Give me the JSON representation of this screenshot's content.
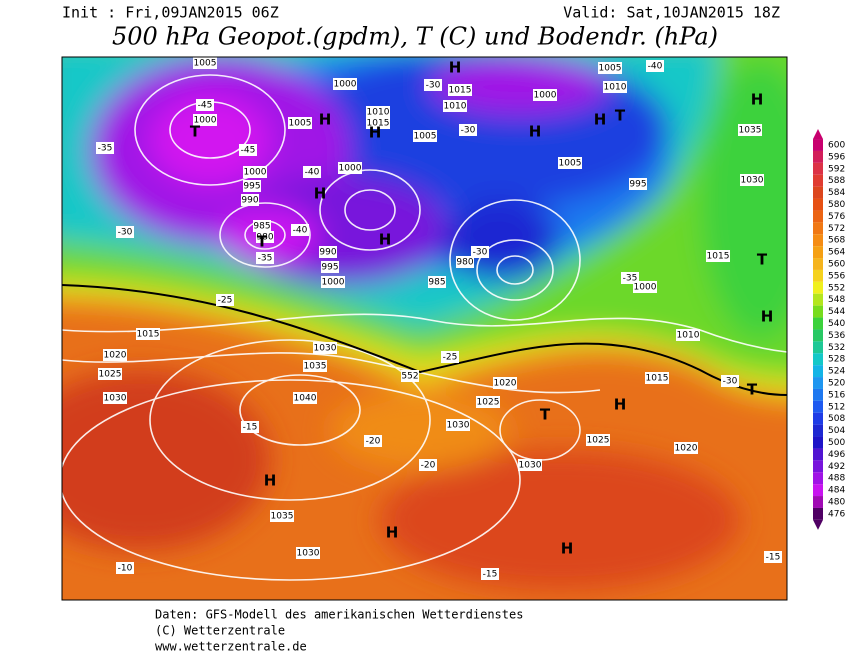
{
  "header": {
    "init": "Init : Fri,09JAN2015 06Z",
    "valid": "Valid: Sat,10JAN2015 18Z",
    "title": "500 hPa Geopot.(gpdm), T (C) und Bodendr. (hPa)"
  },
  "colorbar": {
    "levels": [
      600,
      596,
      592,
      588,
      584,
      580,
      576,
      572,
      568,
      564,
      560,
      556,
      552,
      548,
      544,
      540,
      536,
      532,
      528,
      524,
      520,
      516,
      512,
      508,
      504,
      500,
      496,
      492,
      488,
      484,
      480,
      476
    ],
    "colors": [
      "#c8006e",
      "#d21e5a",
      "#dc3246",
      "#e03c32",
      "#dc461e",
      "#e65014",
      "#eb6414",
      "#f07814",
      "#f58c14",
      "#f5a014",
      "#f5b41e",
      "#f5d21e",
      "#f0f01e",
      "#b4e61e",
      "#78dc1e",
      "#3cd23c",
      "#28c864",
      "#1ec896",
      "#14c8c8",
      "#14b4e6",
      "#1e96f0",
      "#1e78f0",
      "#1e5af0",
      "#1e3ce6",
      "#1e28d2",
      "#1e14c8",
      "#5014d2",
      "#7814dc",
      "#a014e6",
      "#c814f0",
      "#a00ab4",
      "#500064"
    ]
  },
  "map_labels": [
    "1005",
    "H",
    "1000",
    "1015",
    "1010",
    "-30",
    "1000",
    "1005",
    "-40",
    "1010",
    "H",
    "1000",
    "-45",
    "T",
    "1010",
    "1015",
    "1005",
    "H",
    "H",
    "1005",
    "-30",
    "H",
    "H",
    "T",
    "1035",
    "-35",
    "-45",
    "1005",
    "1000",
    "1000",
    "995",
    "990",
    "-40",
    "H",
    "995",
    "1030",
    "985",
    "980",
    "T",
    "-40",
    "990",
    "H",
    "995",
    "1000",
    "-30",
    "-35",
    "980",
    "-30",
    "985",
    "-35",
    "1000",
    "1015",
    "T",
    "H",
    "1010",
    "-25",
    "1015",
    "1020",
    "1025",
    "1030",
    "1035",
    "1030",
    "-25",
    "552",
    "1020",
    "1025",
    "1040",
    "-15",
    "1030",
    "T",
    "H",
    "1015",
    "1025",
    "1020",
    "-20",
    "-20",
    "1030",
    "H",
    "1035",
    "H",
    "1030",
    "H",
    "-15",
    "-10",
    "-15",
    "T",
    "-30"
  ],
  "footer": {
    "source": "Daten: GFS-Modell des amerikanischen Wetterdienstes",
    "copyright": "(C) Wetterzentrale",
    "url": "www.wetterzentrale.de"
  }
}
